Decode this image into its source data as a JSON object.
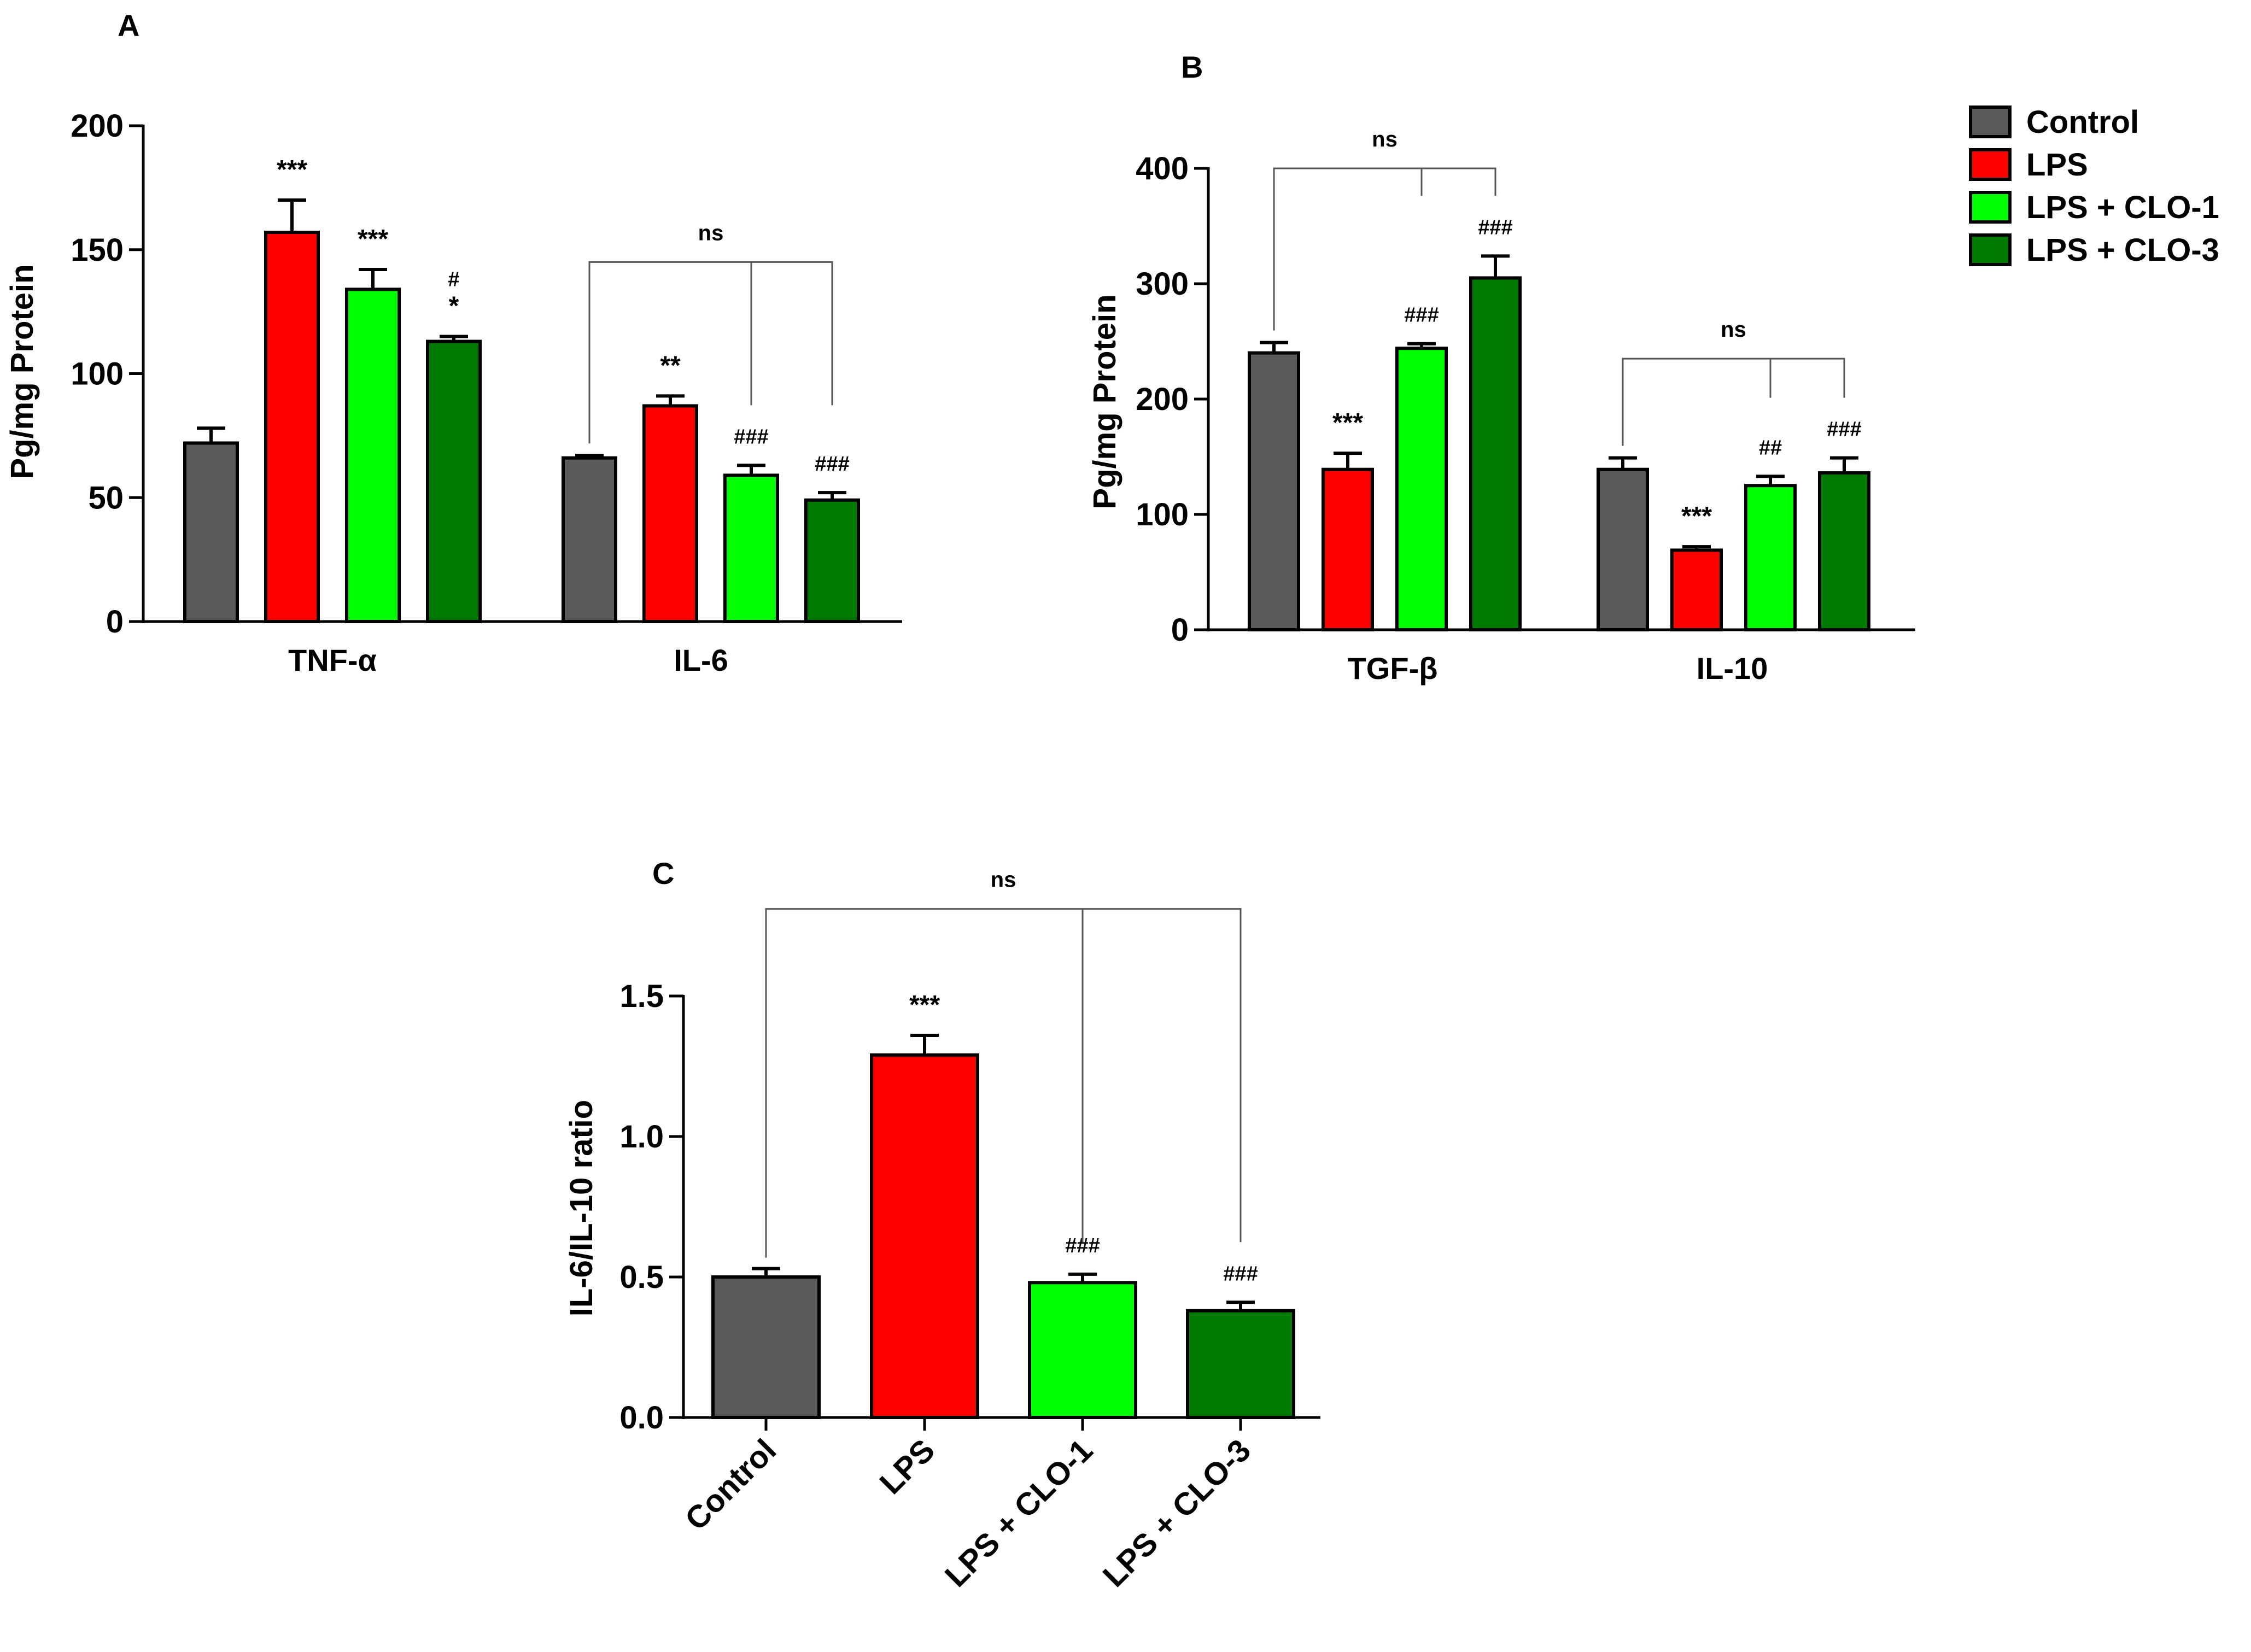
{
  "colors": {
    "Control": "#5a5a5a",
    "LPS": "#ff0000",
    "LPS + CLO-1": "#00ff00",
    "LPS + CLO-3": "#007a00"
  },
  "legend": {
    "items": [
      "Control",
      "LPS",
      "LPS + CLO-1",
      "LPS + CLO-3"
    ]
  },
  "chart_data": [
    {
      "panel": "A",
      "type": "bar",
      "title": "",
      "xlabel": "",
      "ylabel": "Pg/mg Protein",
      "ylim": [
        0,
        200
      ],
      "yticks": [
        0,
        50,
        100,
        150,
        200
      ],
      "tick_labels": [
        "0",
        "50",
        "100",
        "150",
        "200"
      ],
      "categories": [
        "TNF-α",
        "IL-6"
      ],
      "series": [
        {
          "name": "Control",
          "values": [
            72,
            66
          ],
          "errors": [
            6,
            1
          ],
          "annotations": [
            "",
            ""
          ]
        },
        {
          "name": "LPS",
          "values": [
            157,
            87
          ],
          "errors": [
            13,
            4
          ],
          "annotations": [
            "***",
            "**"
          ]
        },
        {
          "name": "LPS + CLO-1",
          "values": [
            134,
            59
          ],
          "errors": [
            8,
            4
          ],
          "annotations": [
            "***",
            "###"
          ]
        },
        {
          "name": "LPS + CLO-3",
          "values": [
            113,
            49
          ],
          "errors": [
            2,
            3
          ],
          "annotations": [
            "#\n*",
            "###"
          ]
        }
      ],
      "brackets": [
        {
          "category": "IL-6",
          "label": "ns",
          "y": 145
        }
      ]
    },
    {
      "panel": "B",
      "type": "bar",
      "title": "",
      "xlabel": "",
      "ylabel": "Pg/mg Protein",
      "ylim": [
        0,
        400
      ],
      "yticks": [
        0,
        100,
        200,
        300,
        400
      ],
      "tick_labels": [
        "0",
        "100",
        "200",
        "300",
        "400"
      ],
      "categories": [
        "TGF-β",
        "IL-10"
      ],
      "series": [
        {
          "name": "Control",
          "values": [
            240,
            139
          ],
          "errors": [
            9,
            10
          ],
          "annotations": [
            "",
            ""
          ]
        },
        {
          "name": "LPS",
          "values": [
            139,
            69
          ],
          "errors": [
            14,
            3
          ],
          "annotations": [
            "***",
            "***"
          ]
        },
        {
          "name": "LPS + CLO-1",
          "values": [
            244,
            125
          ],
          "errors": [
            4,
            8
          ],
          "annotations": [
            "###",
            "##"
          ]
        },
        {
          "name": "LPS + CLO-3",
          "values": [
            305,
            136
          ],
          "errors": [
            19,
            13
          ],
          "annotations": [
            "###",
            "###"
          ]
        }
      ],
      "brackets": [
        {
          "category": "TGF-β",
          "label": "ns",
          "y": 400
        },
        {
          "category": "IL-10",
          "label": "ns",
          "y": 235
        }
      ]
    },
    {
      "panel": "C",
      "type": "bar",
      "title": "",
      "xlabel": "",
      "ylabel": "IL-6/IL-10 ratio",
      "ylim": [
        0,
        1.5
      ],
      "yticks": [
        0,
        0.5,
        1.0,
        1.5
      ],
      "tick_labels": [
        "0.0",
        "0.5",
        "1.0",
        "1.5"
      ],
      "categories": [
        "Control",
        "LPS",
        "LPS + CLO-1",
        "LPS + CLO-3"
      ],
      "values": [
        0.5,
        1.29,
        0.48,
        0.38
      ],
      "errors": [
        0.03,
        0.07,
        0.03,
        0.03
      ],
      "annotations": [
        "",
        "***",
        "###",
        "###"
      ],
      "bracket": {
        "label": "ns",
        "y": 1.81
      }
    }
  ]
}
